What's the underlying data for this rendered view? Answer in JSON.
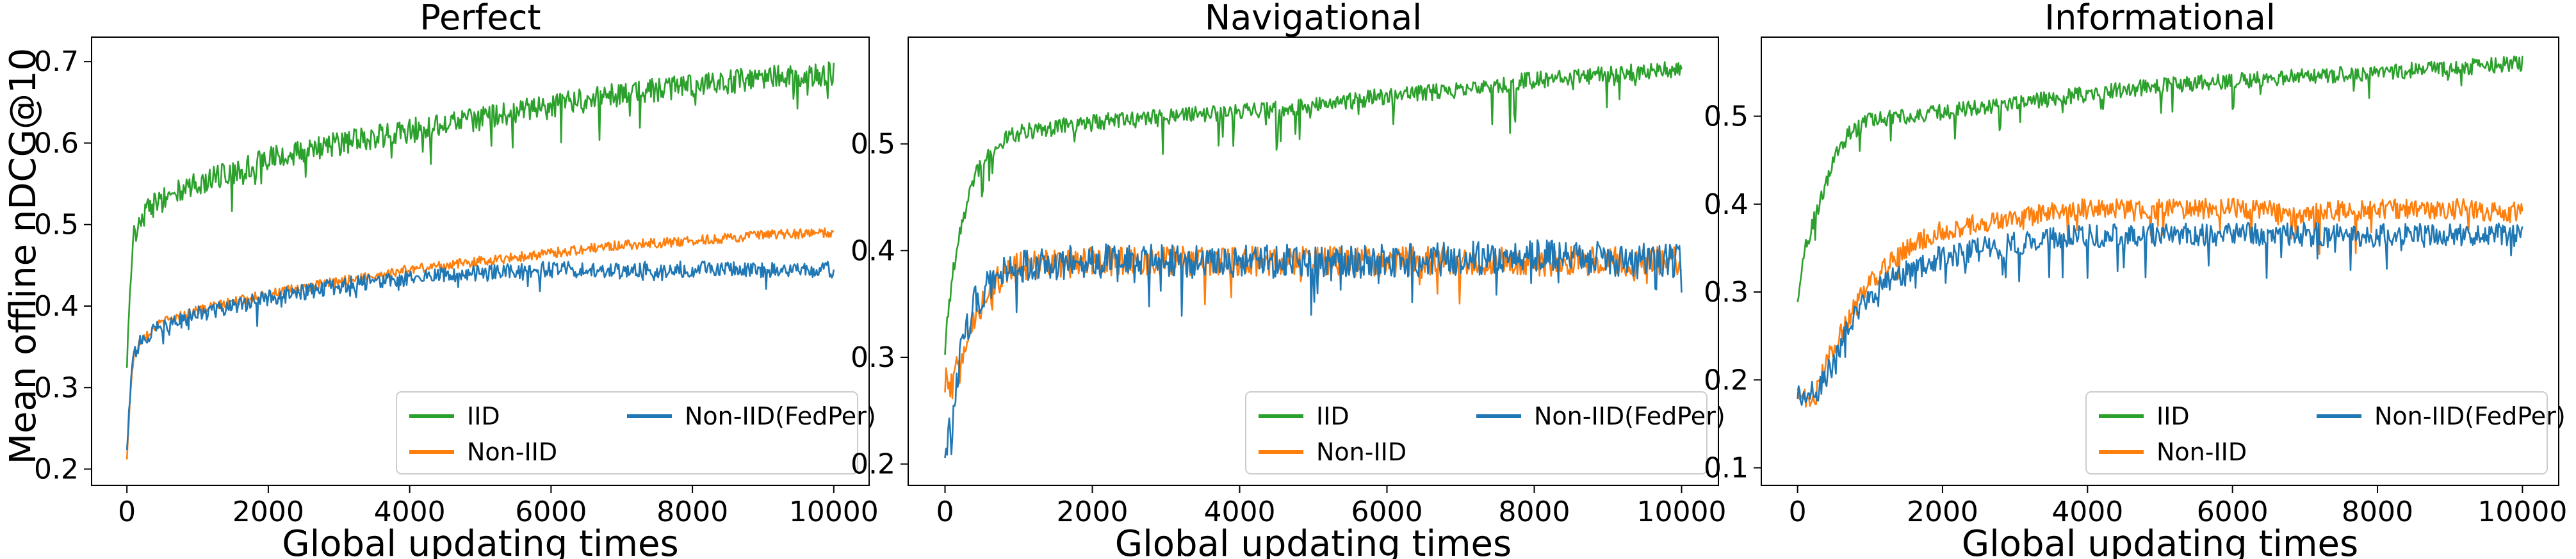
{
  "figure": {
    "ylabel": "Mean offline nDCG@10"
  },
  "chart_data": [
    {
      "type": "line",
      "title": "Perfect",
      "xlabel": "Global updating times",
      "ylabel": "Mean offline nDCG@10",
      "xlim": [
        -500,
        10500
      ],
      "ylim": [
        0.18,
        0.73
      ],
      "xticks": [
        0,
        2000,
        4000,
        6000,
        8000,
        10000
      ],
      "yticks": [
        0.2,
        0.3,
        0.4,
        0.5,
        0.6,
        0.7
      ],
      "grid": false,
      "legend": {
        "placement": "lower-right",
        "columns": 2
      },
      "series": [
        {
          "name": "IID",
          "color": "#2ca02c",
          "noise": 0.015,
          "spikes": 0.05,
          "points": [
            [
              0,
              0.32
            ],
            [
              50,
              0.44
            ],
            [
              100,
              0.49
            ],
            [
              300,
              0.52
            ],
            [
              600,
              0.535
            ],
            [
              1000,
              0.55
            ],
            [
              1500,
              0.565
            ],
            [
              2000,
              0.58
            ],
            [
              3000,
              0.6
            ],
            [
              4000,
              0.615
            ],
            [
              5000,
              0.63
            ],
            [
              6000,
              0.645
            ],
            [
              7000,
              0.66
            ],
            [
              8000,
              0.67
            ],
            [
              9000,
              0.68
            ],
            [
              10000,
              0.685
            ]
          ]
        },
        {
          "name": "Non-IID",
          "color": "#ff7f0e",
          "noise": 0.006,
          "spikes": 0.0,
          "points": [
            [
              0,
              0.21
            ],
            [
              50,
              0.3
            ],
            [
              100,
              0.34
            ],
            [
              200,
              0.36
            ],
            [
              500,
              0.38
            ],
            [
              1000,
              0.395
            ],
            [
              2000,
              0.415
            ],
            [
              3000,
              0.43
            ],
            [
              4000,
              0.445
            ],
            [
              5000,
              0.455
            ],
            [
              6000,
              0.465
            ],
            [
              7000,
              0.475
            ],
            [
              8000,
              0.48
            ],
            [
              9000,
              0.487
            ],
            [
              10000,
              0.49
            ]
          ]
        },
        {
          "name": "Non-IID(FedPer)",
          "color": "#1f77b4",
          "noise": 0.01,
          "spikes": 0.025,
          "points": [
            [
              0,
              0.22
            ],
            [
              50,
              0.3
            ],
            [
              100,
              0.34
            ],
            [
              200,
              0.36
            ],
            [
              500,
              0.375
            ],
            [
              1000,
              0.39
            ],
            [
              2000,
              0.41
            ],
            [
              3000,
              0.425
            ],
            [
              4000,
              0.435
            ],
            [
              5000,
              0.44
            ],
            [
              6000,
              0.445
            ],
            [
              7000,
              0.445
            ],
            [
              8000,
              0.445
            ],
            [
              9000,
              0.445
            ],
            [
              10000,
              0.445
            ]
          ]
        }
      ]
    },
    {
      "type": "line",
      "title": "Navigational",
      "xlabel": "Global updating times",
      "ylabel": "",
      "xlim": [
        -500,
        10500
      ],
      "ylim": [
        0.18,
        0.6
      ],
      "xticks": [
        0,
        2000,
        4000,
        6000,
        8000,
        10000
      ],
      "yticks": [
        0.2,
        0.3,
        0.4,
        0.5
      ],
      "grid": false,
      "legend": {
        "placement": "lower-right",
        "columns": 2
      },
      "series": [
        {
          "name": "IID",
          "color": "#2ca02c",
          "noise": 0.008,
          "spikes": 0.04,
          "points": [
            [
              0,
              0.31
            ],
            [
              100,
              0.38
            ],
            [
              200,
              0.42
            ],
            [
              400,
              0.47
            ],
            [
              700,
              0.5
            ],
            [
              1000,
              0.51
            ],
            [
              1500,
              0.515
            ],
            [
              2000,
              0.52
            ],
            [
              3000,
              0.525
            ],
            [
              4000,
              0.53
            ],
            [
              5000,
              0.535
            ],
            [
              6000,
              0.545
            ],
            [
              7000,
              0.55
            ],
            [
              8000,
              0.56
            ],
            [
              9000,
              0.565
            ],
            [
              10000,
              0.57
            ]
          ]
        },
        {
          "name": "Non-IID",
          "color": "#ff7f0e",
          "noise": 0.014,
          "spikes": 0.03,
          "points": [
            [
              0,
              0.28
            ],
            [
              100,
              0.27
            ],
            [
              200,
              0.3
            ],
            [
              400,
              0.34
            ],
            [
              700,
              0.37
            ],
            [
              1000,
              0.385
            ],
            [
              2000,
              0.39
            ],
            [
              4000,
              0.39
            ],
            [
              6000,
              0.39
            ],
            [
              8000,
              0.39
            ],
            [
              10000,
              0.39
            ]
          ]
        },
        {
          "name": "Non-IID(FedPer)",
          "color": "#1f77b4",
          "noise": 0.016,
          "spikes": 0.04,
          "points": [
            [
              0,
              0.22
            ],
            [
              100,
              0.24
            ],
            [
              200,
              0.3
            ],
            [
              400,
              0.35
            ],
            [
              700,
              0.375
            ],
            [
              1000,
              0.385
            ],
            [
              2000,
              0.39
            ],
            [
              4000,
              0.39
            ],
            [
              6000,
              0.39
            ],
            [
              8000,
              0.395
            ],
            [
              10000,
              0.39
            ]
          ]
        }
      ]
    },
    {
      "type": "line",
      "title": "Informational",
      "xlabel": "Global updating times",
      "ylabel": "",
      "xlim": [
        -500,
        10500
      ],
      "ylim": [
        0.08,
        0.59
      ],
      "xticks": [
        0,
        2000,
        4000,
        6000,
        8000,
        10000
      ],
      "yticks": [
        0.1,
        0.2,
        0.3,
        0.4,
        0.5
      ],
      "grid": false,
      "legend": {
        "placement": "lower-right",
        "columns": 2
      },
      "series": [
        {
          "name": "IID",
          "color": "#2ca02c",
          "noise": 0.009,
          "spikes": 0.03,
          "points": [
            [
              0,
              0.29
            ],
            [
              100,
              0.35
            ],
            [
              300,
              0.4
            ],
            [
              500,
              0.45
            ],
            [
              700,
              0.48
            ],
            [
              1000,
              0.495
            ],
            [
              2000,
              0.505
            ],
            [
              3000,
              0.515
            ],
            [
              4000,
              0.525
            ],
            [
              5000,
              0.535
            ],
            [
              6000,
              0.54
            ],
            [
              7000,
              0.545
            ],
            [
              8000,
              0.55
            ],
            [
              9000,
              0.555
            ],
            [
              10000,
              0.56
            ]
          ]
        },
        {
          "name": "Non-IID",
          "color": "#ff7f0e",
          "noise": 0.012,
          "spikes": 0.04,
          "points": [
            [
              0,
              0.19
            ],
            [
              200,
              0.17
            ],
            [
              400,
              0.22
            ],
            [
              700,
              0.27
            ],
            [
              1000,
              0.31
            ],
            [
              1500,
              0.35
            ],
            [
              2000,
              0.37
            ],
            [
              3000,
              0.385
            ],
            [
              4000,
              0.395
            ],
            [
              5000,
              0.395
            ],
            [
              6000,
              0.395
            ],
            [
              7000,
              0.39
            ],
            [
              8000,
              0.395
            ],
            [
              9000,
              0.395
            ],
            [
              10000,
              0.39
            ]
          ]
        },
        {
          "name": "Non-IID(FedPer)",
          "color": "#1f77b4",
          "noise": 0.014,
          "spikes": 0.04,
          "points": [
            [
              0,
              0.18
            ],
            [
              300,
              0.19
            ],
            [
              500,
              0.22
            ],
            [
              800,
              0.28
            ],
            [
              1200,
              0.31
            ],
            [
              2000,
              0.34
            ],
            [
              3000,
              0.355
            ],
            [
              4000,
              0.365
            ],
            [
              5000,
              0.365
            ],
            [
              6000,
              0.365
            ],
            [
              7000,
              0.365
            ],
            [
              8000,
              0.365
            ],
            [
              9000,
              0.365
            ],
            [
              10000,
              0.365
            ]
          ]
        }
      ]
    }
  ]
}
